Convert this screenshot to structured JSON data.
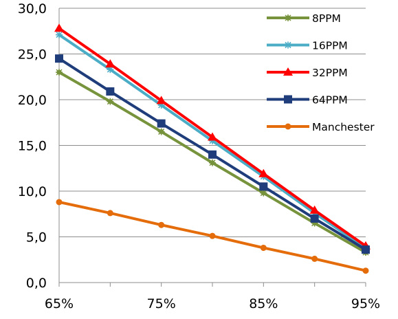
{
  "chart_data": {
    "type": "line",
    "title": "",
    "xlabel": "",
    "ylabel": "",
    "x": [
      0.65,
      0.7,
      0.75,
      0.8,
      0.85,
      0.9,
      0.95
    ],
    "x_tick_labels": [
      "65%",
      "75%",
      "85%",
      "95%"
    ],
    "x_tick_values": [
      0.65,
      0.75,
      0.85,
      0.95
    ],
    "xlim": [
      0.65,
      0.95
    ],
    "ylim": [
      0,
      30
    ],
    "y_tick_labels": [
      "0,0",
      "5,0",
      "10,0",
      "15,0",
      "20,0",
      "25,0",
      "30,0"
    ],
    "y_tick_values": [
      0,
      5,
      10,
      15,
      20,
      25,
      30
    ],
    "grid": "horizontal",
    "legend_position": "right",
    "series": [
      {
        "name": "8PPM",
        "color": "#77933C",
        "marker": "asterisk",
        "values": [
          23.0,
          19.8,
          16.5,
          13.1,
          9.8,
          6.5,
          3.3
        ]
      },
      {
        "name": "16PPM",
        "color": "#4BACC6",
        "marker": "star",
        "values": [
          27.1,
          23.3,
          19.4,
          15.5,
          11.6,
          7.6,
          3.8
        ]
      },
      {
        "name": "32PPM",
        "color": "#FF0000",
        "marker": "triangle",
        "values": [
          27.8,
          23.9,
          19.9,
          15.9,
          11.9,
          7.9,
          4.0
        ]
      },
      {
        "name": "64PPM",
        "color": "#1F3D7A",
        "marker": "square",
        "values": [
          24.5,
          20.9,
          17.4,
          14.0,
          10.5,
          7.0,
          3.6
        ]
      },
      {
        "name": "Manchester",
        "color": "#E46C0A",
        "marker": "circle",
        "values": [
          8.8,
          7.6,
          6.3,
          5.1,
          3.8,
          2.6,
          1.3
        ]
      }
    ]
  }
}
